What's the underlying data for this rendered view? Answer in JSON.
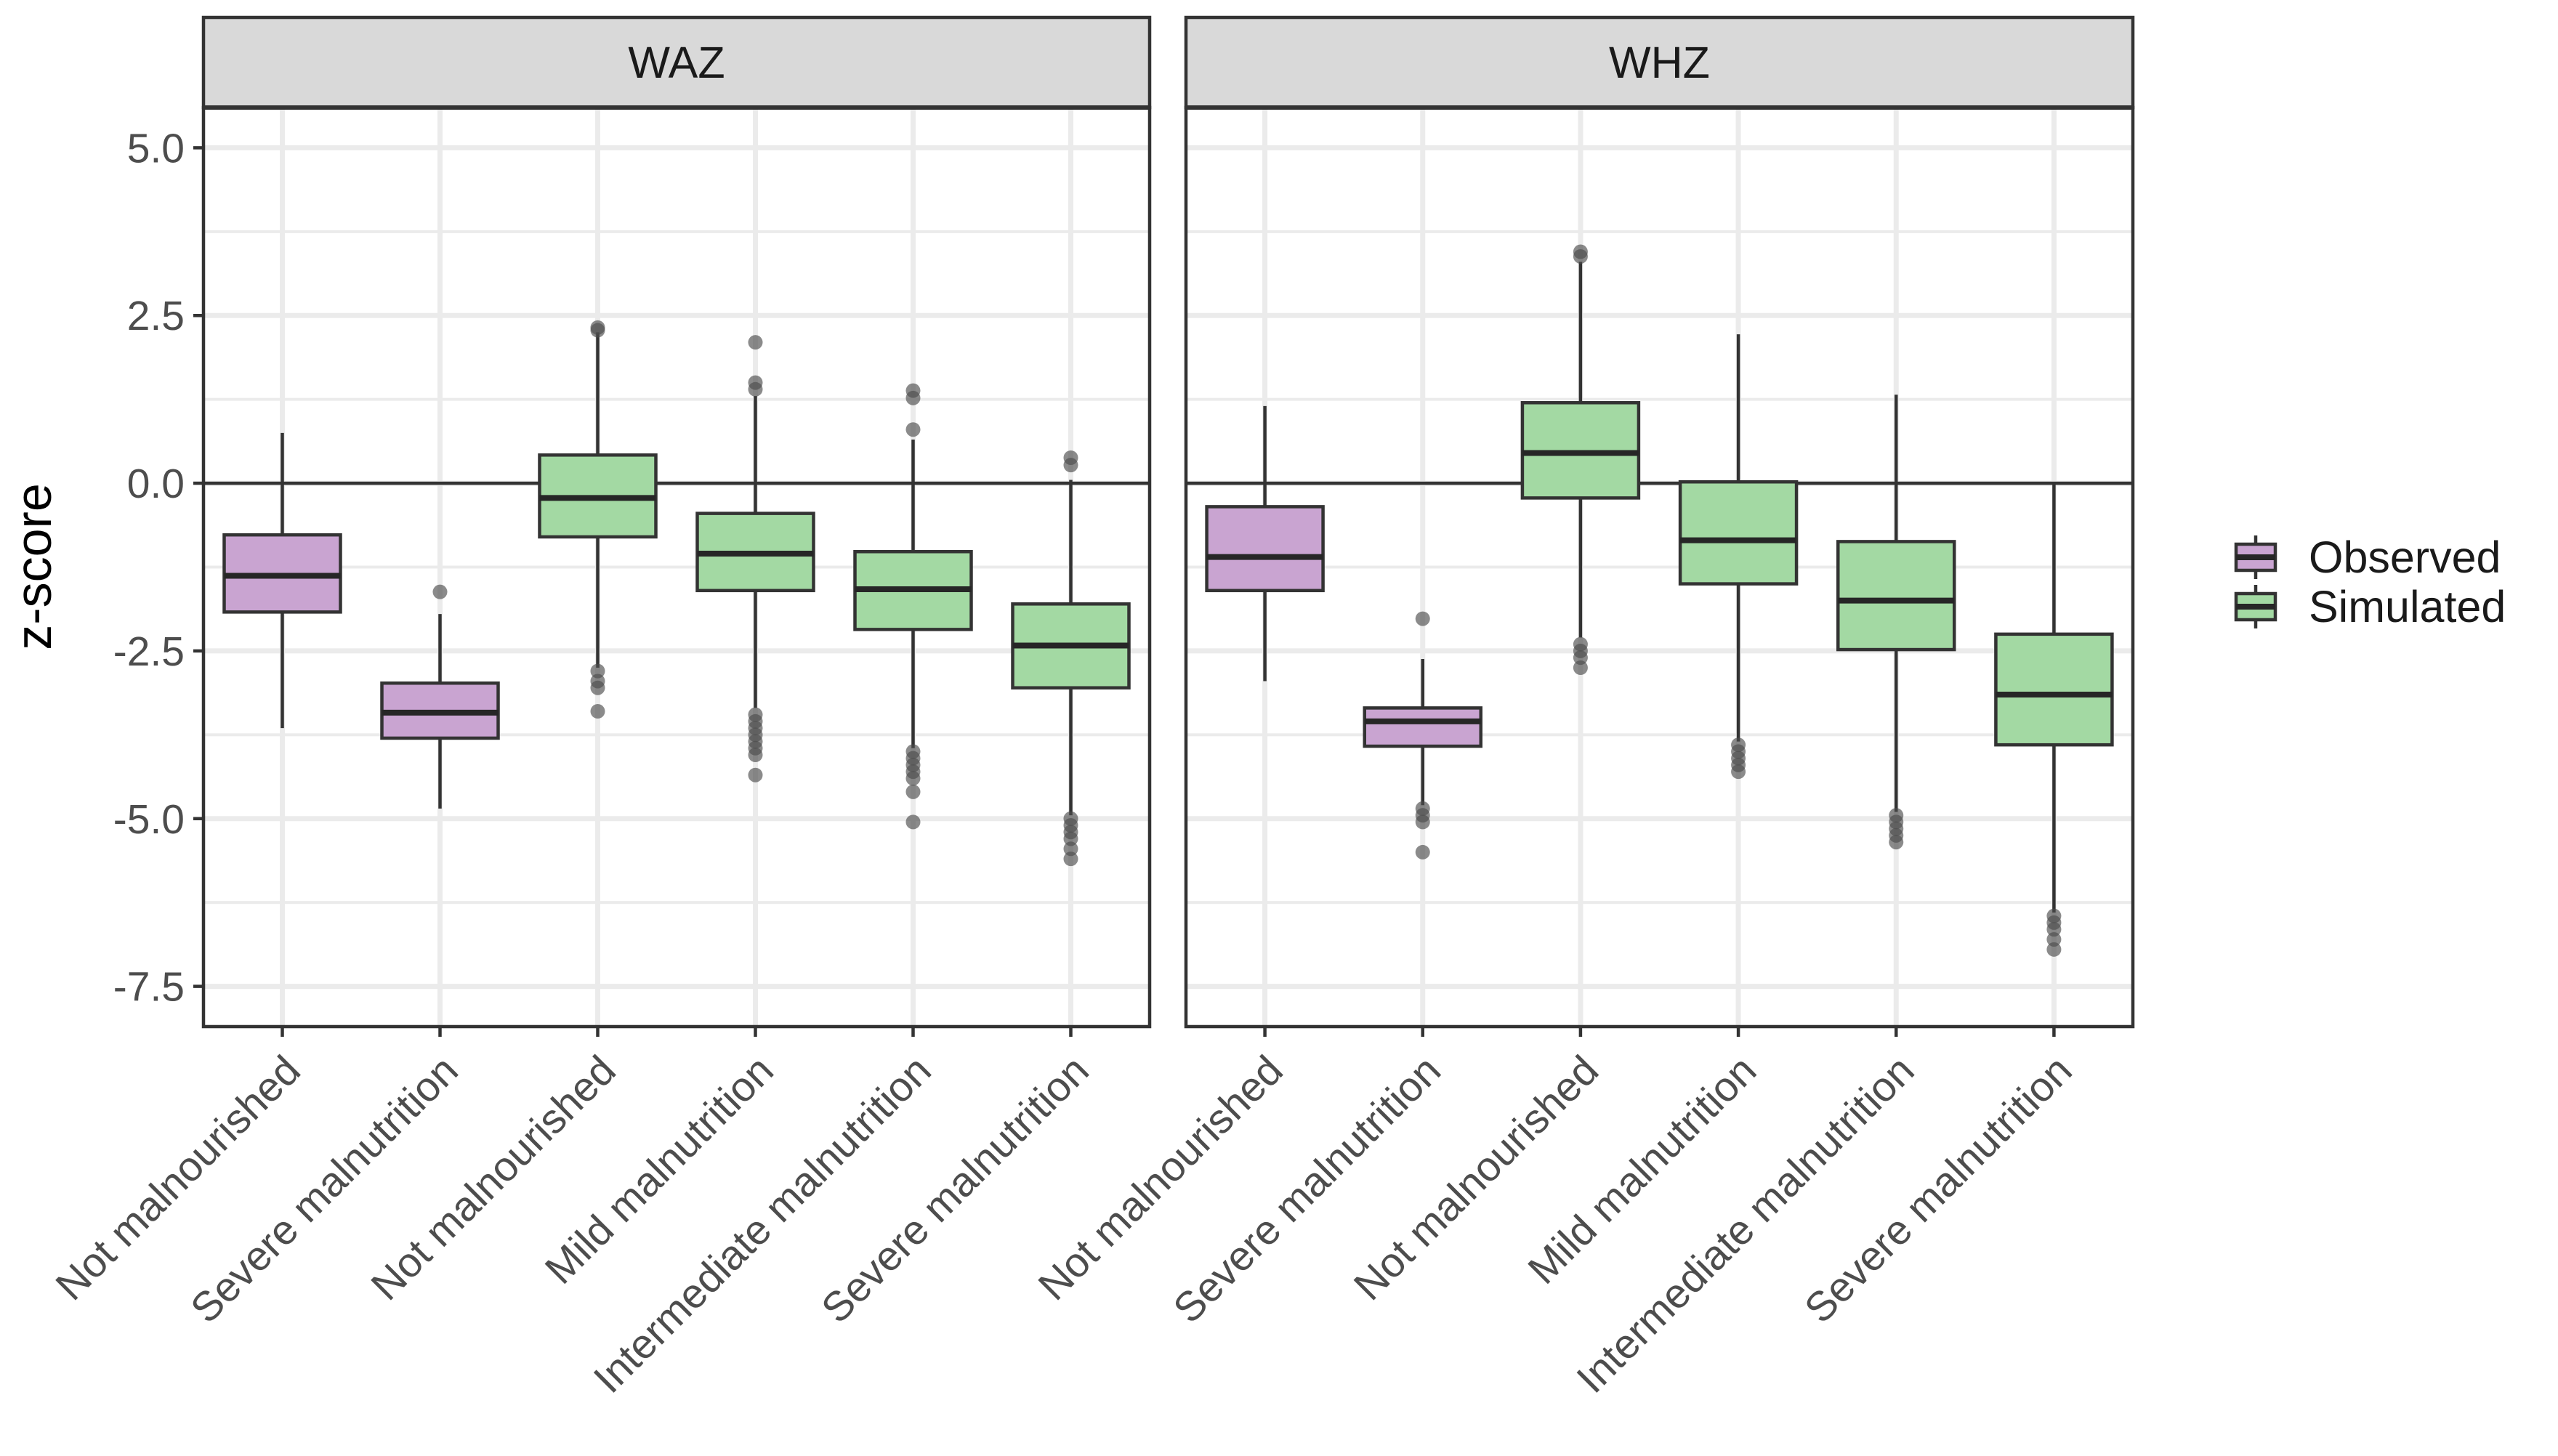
{
  "chart_data": {
    "type": "boxplot",
    "ylabel": "z-score",
    "ylim": [
      -8.1,
      5.6
    ],
    "yticks": [
      5.0,
      2.5,
      0.0,
      -2.5,
      -5.0,
      -7.5
    ],
    "ytick_labels": [
      "5.0",
      "2.5",
      "0.0",
      "-2.5",
      "-5.0",
      "-7.5"
    ],
    "reference_line": 0,
    "colors": {
      "Observed": "#c9a4d1",
      "Simulated": "#a3d9a3"
    },
    "legend": {
      "position": "right",
      "entries": [
        {
          "label": "Observed",
          "color": "#c9a4d1"
        },
        {
          "label": "Simulated",
          "color": "#a3d9a3"
        }
      ]
    },
    "panels": [
      {
        "strip_label": "WAZ",
        "groups": [
          {
            "category": "Not malnourished",
            "group": "Observed",
            "q1": -1.92,
            "median": -1.38,
            "q3": -0.77,
            "whisker_low": -3.65,
            "whisker_high": 0.75,
            "outliers": []
          },
          {
            "category": "Severe malnutrition",
            "group": "Observed",
            "q1": -3.8,
            "median": -3.42,
            "q3": -2.98,
            "whisker_low": -4.85,
            "whisker_high": -1.95,
            "outliers": [
              -1.62
            ]
          },
          {
            "category": "Not malnourished",
            "group": "Simulated",
            "q1": -0.8,
            "median": -0.22,
            "q3": 0.42,
            "whisker_low": -2.75,
            "whisker_high": 2.25,
            "outliers": [
              2.32,
              2.28,
              -2.8,
              -2.95,
              -3.05,
              -3.4
            ]
          },
          {
            "category": "Mild malnutrition",
            "group": "Simulated",
            "q1": -1.6,
            "median": -1.05,
            "q3": -0.45,
            "whisker_low": -3.35,
            "whisker_high": 1.3,
            "outliers": [
              2.1,
              1.5,
              1.4,
              -3.45,
              -3.55,
              -3.65,
              -3.75,
              -3.85,
              -3.95,
              -4.05,
              -4.35
            ]
          },
          {
            "category": "Intermediate malnutrition",
            "group": "Simulated",
            "q1": -2.18,
            "median": -1.58,
            "q3": -1.02,
            "whisker_low": -3.95,
            "whisker_high": 0.65,
            "outliers": [
              1.38,
              1.27,
              0.8,
              -4.0,
              -4.1,
              -4.2,
              -4.3,
              -4.4,
              -4.6,
              -5.05
            ]
          },
          {
            "category": "Severe malnutrition",
            "group": "Simulated",
            "q1": -3.05,
            "median": -2.42,
            "q3": -1.8,
            "whisker_low": -4.95,
            "whisker_high": 0.05,
            "outliers": [
              0.38,
              0.27,
              -5.0,
              -5.1,
              -5.2,
              -5.3,
              -5.45,
              -5.6
            ]
          }
        ]
      },
      {
        "strip_label": "WHZ",
        "groups": [
          {
            "category": "Not malnourished",
            "group": "Observed",
            "q1": -1.6,
            "median": -1.1,
            "q3": -0.35,
            "whisker_low": -2.95,
            "whisker_high": 1.15,
            "outliers": []
          },
          {
            "category": "Severe malnutrition",
            "group": "Observed",
            "q1": -3.92,
            "median": -3.55,
            "q3": -3.35,
            "whisker_low": -4.8,
            "whisker_high": -2.62,
            "outliers": [
              -2.02,
              -4.85,
              -4.95,
              -5.05,
              -5.5
            ]
          },
          {
            "category": "Not malnourished",
            "group": "Simulated",
            "q1": -0.22,
            "median": 0.45,
            "q3": 1.2,
            "whisker_low": -2.3,
            "whisker_high": 3.3,
            "outliers": [
              3.45,
              3.38,
              -2.4,
              -2.5,
              -2.6,
              -2.75
            ]
          },
          {
            "category": "Mild malnutrition",
            "group": "Simulated",
            "q1": -1.5,
            "median": -0.85,
            "q3": 0.02,
            "whisker_low": -3.85,
            "whisker_high": 2.22,
            "outliers": [
              -3.9,
              -4.0,
              -4.1,
              -4.2,
              -4.3
            ]
          },
          {
            "category": "Intermediate malnutrition",
            "group": "Simulated",
            "q1": -2.48,
            "median": -1.75,
            "q3": -0.87,
            "whisker_low": -4.9,
            "whisker_high": 1.32,
            "outliers": [
              -4.95,
              -5.05,
              -5.15,
              -5.25,
              -5.35
            ]
          },
          {
            "category": "Severe malnutrition",
            "group": "Simulated",
            "q1": -3.9,
            "median": -3.15,
            "q3": -2.25,
            "whisker_low": -6.4,
            "whisker_high": 0.0,
            "outliers": [
              -6.45,
              -6.55,
              -6.65,
              -6.8,
              -6.95
            ]
          }
        ]
      }
    ]
  }
}
